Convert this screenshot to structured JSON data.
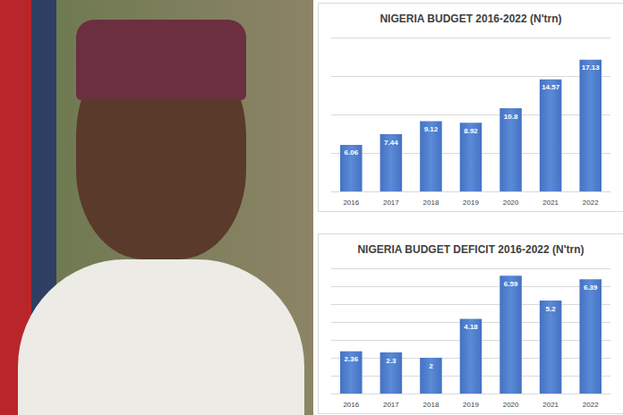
{
  "chart_data": [
    {
      "type": "bar",
      "title": "NIGERIA BUDGET 2016-2022 (N'trn)",
      "categories": [
        "2016",
        "2017",
        "2018",
        "2019",
        "2020",
        "2021",
        "2022"
      ],
      "values": [
        6.06,
        7.44,
        9.12,
        8.92,
        10.8,
        14.57,
        17.13
      ],
      "color": "#4472c4",
      "ylim": [
        0,
        20
      ],
      "yticks": [
        0,
        5,
        10,
        15,
        20
      ],
      "grid": true,
      "data_labels": true,
      "tick_labels": "x"
    },
    {
      "type": "bar",
      "title": "NIGERIA BUDGET DEFICIT 2016-2022 (N'trn)",
      "categories": [
        "2016",
        "2017",
        "2018",
        "2019",
        "2020",
        "2021",
        "2022"
      ],
      "values": [
        2.36,
        2.3,
        2,
        4.18,
        6.59,
        5.2,
        6.39
      ],
      "color": "#4472c4",
      "ylim": [
        0,
        7
      ],
      "yticks": [
        0,
        1,
        2,
        3,
        4,
        5,
        6,
        7
      ],
      "grid": true,
      "data_labels": true,
      "tick_labels": "x"
    }
  ]
}
